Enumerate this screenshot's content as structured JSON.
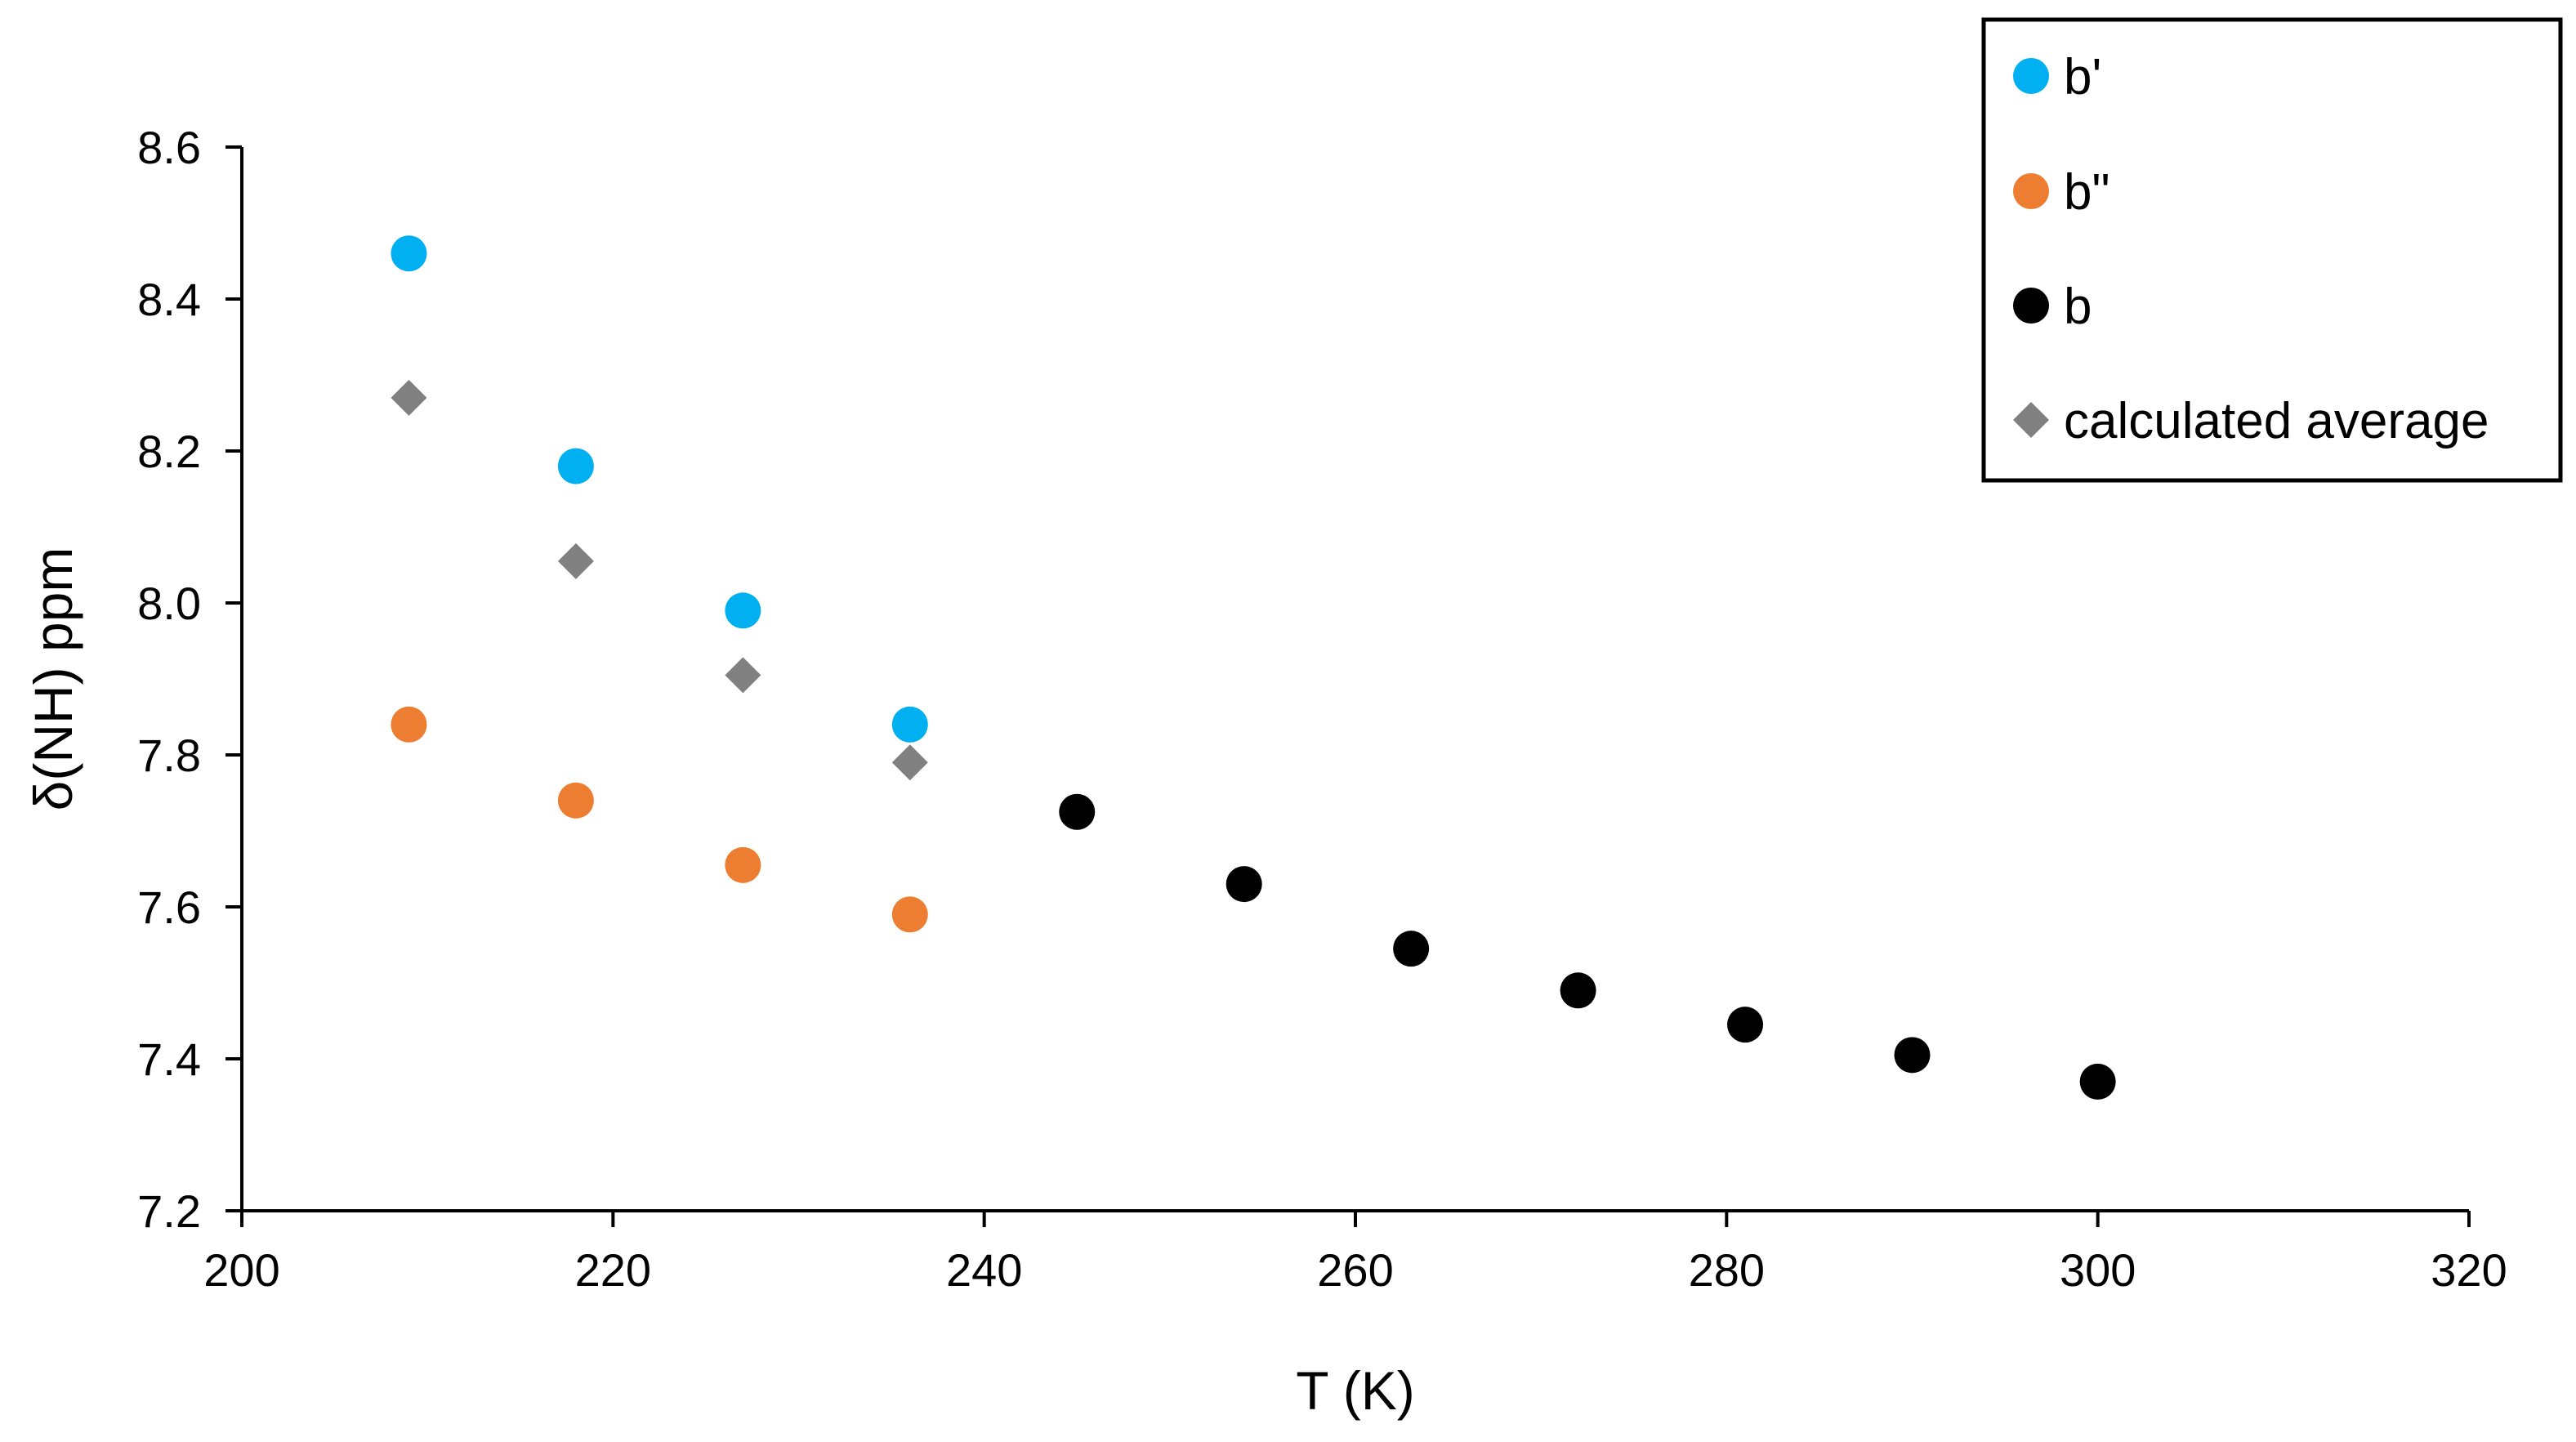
{
  "chart_data": {
    "type": "scatter",
    "xlabel": "T (K)",
    "ylabel": "δ(NH) ppm",
    "xlim": [
      200,
      320
    ],
    "ylim": [
      7.2,
      8.6
    ],
    "xticks": [
      "200",
      "220",
      "240",
      "260",
      "280",
      "300",
      "320"
    ],
    "yticks": [
      "7.2",
      "7.4",
      "7.6",
      "7.8",
      "8.0",
      "8.2",
      "8.4",
      "8.6"
    ],
    "grid": false,
    "legend_position": "top-right",
    "series": [
      {
        "name": "b'",
        "marker": "circle",
        "color": "#00B0F0",
        "x": [
          209,
          218,
          227,
          236
        ],
        "y": [
          8.46,
          8.18,
          7.99,
          7.84
        ]
      },
      {
        "name": "b\"",
        "marker": "circle",
        "color": "#ED7D31",
        "x": [
          209,
          218,
          227,
          236
        ],
        "y": [
          7.84,
          7.74,
          7.655,
          7.59
        ]
      },
      {
        "name": "b",
        "marker": "circle",
        "color": "#000000",
        "x": [
          245,
          254,
          263,
          272,
          281,
          290,
          300
        ],
        "y": [
          7.725,
          7.63,
          7.545,
          7.49,
          7.445,
          7.405,
          7.37
        ]
      },
      {
        "name": "calculated average",
        "marker": "diamond",
        "color": "#808080",
        "x": [
          209,
          218,
          227,
          236
        ],
        "y": [
          8.27,
          8.055,
          7.905,
          7.79
        ]
      }
    ]
  }
}
